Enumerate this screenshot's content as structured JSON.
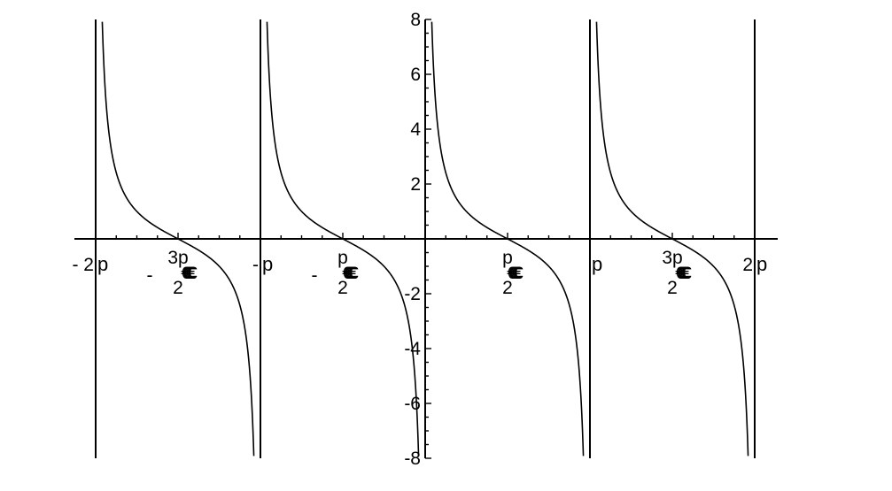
{
  "chart_data": {
    "type": "line",
    "title": "",
    "xlabel": "",
    "ylabel": "",
    "function": "cot(x)",
    "xlim": [
      -6.2832,
      6.2832
    ],
    "ylim": [
      -8,
      8
    ],
    "grid": false,
    "legend": "none",
    "y_ticks_major": [
      -8,
      -6,
      -4,
      -2,
      2,
      4,
      6,
      8
    ],
    "y_tick_labels": [
      "-8",
      "-6",
      "-4",
      "-2",
      "2",
      "4",
      "6",
      "8"
    ],
    "asymptotes": [
      -6.2832,
      -3.1416,
      3.1416,
      6.2832
    ],
    "x_ticks": [
      {
        "value": -6.2832,
        "sign": "-",
        "num": "2",
        "sym": "p",
        "den": ""
      },
      {
        "value": -4.7124,
        "sign": "-",
        "num": "3",
        "sym": "p",
        "den": "2"
      },
      {
        "value": -3.1416,
        "sign": "-",
        "num": "",
        "sym": "p",
        "den": ""
      },
      {
        "value": -1.5708,
        "sign": "-",
        "num": "",
        "sym": "p",
        "den": "2"
      },
      {
        "value": 1.5708,
        "sign": "",
        "num": "",
        "sym": "p",
        "den": "2"
      },
      {
        "value": 3.1416,
        "sign": "",
        "num": "",
        "sym": "p",
        "den": ""
      },
      {
        "value": 4.7124,
        "sign": "",
        "num": "3",
        "sym": "p",
        "den": "2"
      },
      {
        "value": 6.2832,
        "sign": "",
        "num": "2",
        "sym": "p",
        "den": ""
      }
    ],
    "fraction_bar_glyph": "€€€€€€",
    "color": "#000000"
  }
}
